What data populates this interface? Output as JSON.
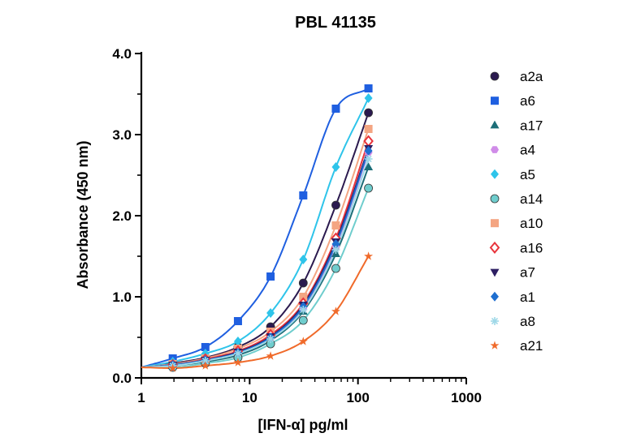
{
  "chart_data": {
    "type": "scatter",
    "title": "PBL 41135",
    "xlabel": "[IFN-α] pg/ml",
    "ylabel": "Absorbance (450 nm)",
    "xscale": "log",
    "xlim": [
      1,
      1000
    ],
    "ylim": [
      0,
      4
    ],
    "x_ticks": [
      1,
      10,
      100,
      1000
    ],
    "x_tick_labels": [
      "1",
      "10",
      "100",
      "1000"
    ],
    "y_ticks": [
      0,
      1,
      2,
      3,
      4
    ],
    "y_tick_labels": [
      "0.0",
      "1.0",
      "2.0",
      "3.0",
      "4.0"
    ],
    "legend_position": "right",
    "x": [
      1.95,
      3.9,
      7.8,
      15.6,
      31.25,
      62.5,
      125
    ],
    "series": [
      {
        "name": "a2a",
        "marker": "circle",
        "color": "#2b1a4f",
        "values": [
          0.18,
          0.25,
          0.38,
          0.63,
          1.17,
          2.13,
          3.27
        ]
      },
      {
        "name": "a6",
        "marker": "square",
        "color": "#1f5fe0",
        "values": [
          0.24,
          0.38,
          0.7,
          1.25,
          2.25,
          3.32,
          3.57
        ]
      },
      {
        "name": "a17",
        "marker": "triangle-up",
        "color": "#1c6e78",
        "values": [
          0.15,
          0.2,
          0.28,
          0.46,
          0.82,
          1.53,
          2.6
        ]
      },
      {
        "name": "a4",
        "marker": "hexagon",
        "color": "#d08ce8",
        "values": [
          0.16,
          0.22,
          0.31,
          0.5,
          0.86,
          1.62,
          2.78
        ]
      },
      {
        "name": "a5",
        "marker": "diamond",
        "color": "#2ec4ea",
        "values": [
          0.2,
          0.3,
          0.45,
          0.8,
          1.46,
          2.6,
          3.45
        ]
      },
      {
        "name": "a14",
        "marker": "circle",
        "color": "#6fcdcd",
        "values": [
          0.13,
          0.18,
          0.25,
          0.42,
          0.71,
          1.35,
          2.34
        ]
      },
      {
        "name": "a10",
        "marker": "square",
        "color": "#f4a582",
        "values": [
          0.17,
          0.24,
          0.36,
          0.57,
          1.0,
          1.88,
          3.07
        ]
      },
      {
        "name": "a16",
        "marker": "diamond-open",
        "color": "#e8343c",
        "values": [
          0.16,
          0.23,
          0.33,
          0.53,
          0.92,
          1.72,
          2.92
        ]
      },
      {
        "name": "a7",
        "marker": "triangle-down",
        "color": "#2d1f63",
        "values": [
          0.16,
          0.22,
          0.32,
          0.51,
          0.9,
          1.68,
          2.83
        ]
      },
      {
        "name": "a1",
        "marker": "diamond",
        "color": "#1f6fd0",
        "values": [
          0.16,
          0.22,
          0.31,
          0.5,
          0.88,
          1.65,
          2.8
        ]
      },
      {
        "name": "a8",
        "marker": "asterisk",
        "color": "#9ed8e8",
        "values": [
          0.15,
          0.21,
          0.3,
          0.48,
          0.84,
          1.58,
          2.7
        ]
      },
      {
        "name": "a21",
        "marker": "star",
        "color": "#f06a2a",
        "values": [
          0.12,
          0.15,
          0.19,
          0.27,
          0.45,
          0.82,
          1.5
        ]
      }
    ]
  }
}
